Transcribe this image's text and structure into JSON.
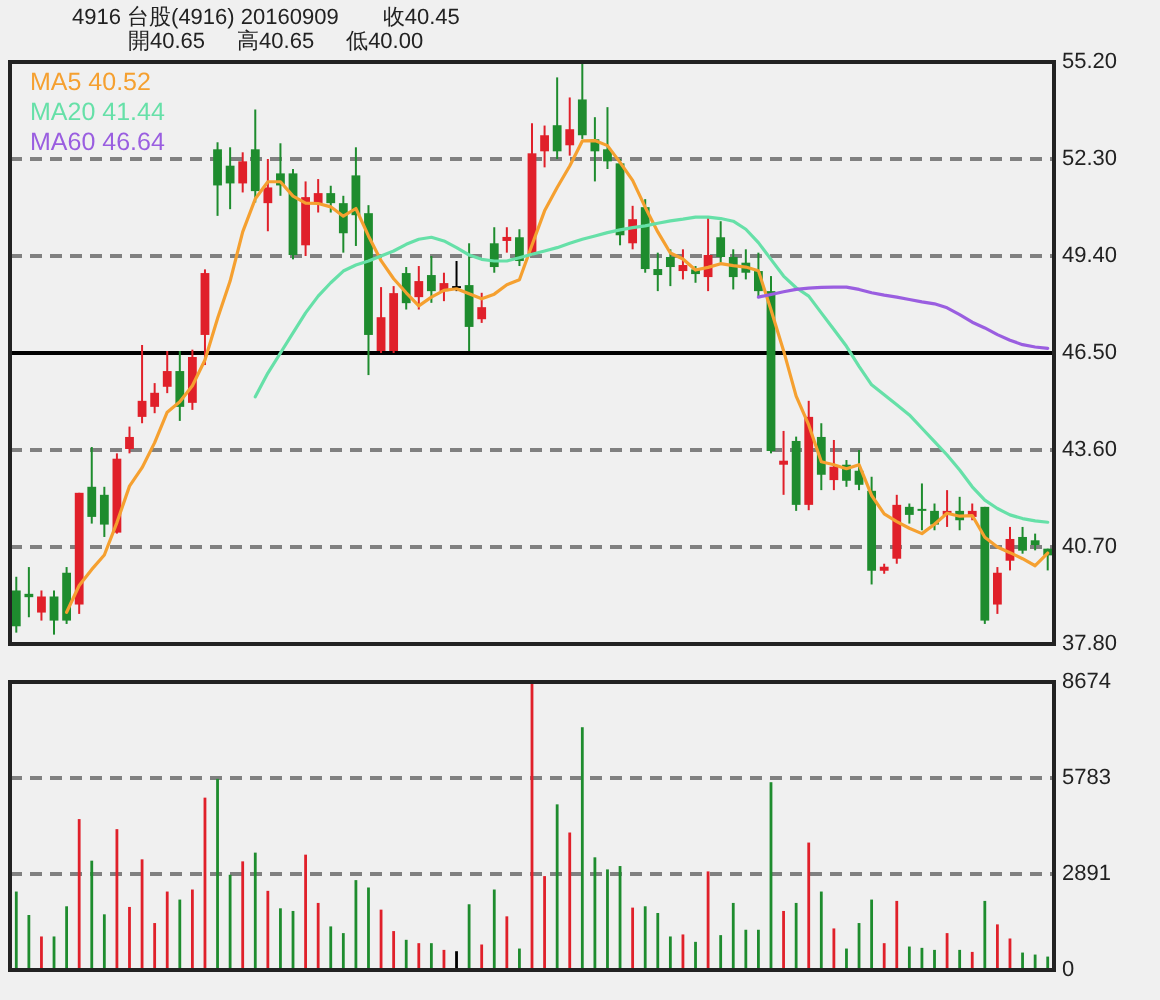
{
  "chart_data": [
    {
      "type": "candlestick",
      "title": "4916  台股(4916)  20160909",
      "annotations": [
        "收40.45",
        "開40.65",
        "高40.65",
        "低40.00"
      ],
      "categories": [
        null,
        null,
        null,
        null,
        null,
        null,
        null,
        null,
        null,
        null,
        null,
        null,
        null,
        null,
        null,
        null,
        null,
        null,
        null,
        null,
        null,
        null,
        null,
        null,
        null,
        null,
        null,
        null,
        null,
        null,
        null,
        null,
        null,
        null,
        null,
        null,
        null,
        null,
        null,
        null,
        null,
        null,
        null,
        null,
        null,
        null,
        null,
        null,
        null,
        null,
        null,
        null,
        null,
        null,
        null,
        null,
        null,
        null,
        null,
        null,
        null,
        null,
        null,
        null,
        null,
        null,
        null,
        null,
        null,
        null,
        null,
        null,
        null,
        null,
        null,
        null,
        null,
        null,
        null,
        null,
        null,
        null,
        null
      ],
      "ohlc": [
        [
          39.4,
          39.81,
          38.14,
          38.33
        ],
        [
          39.3,
          40.1,
          38.6,
          39.2
        ],
        [
          38.74,
          39.4,
          38.5,
          39.22
        ],
        [
          39.22,
          39.4,
          38.08,
          38.5
        ],
        [
          39.93,
          40.1,
          38.4,
          38.5
        ],
        [
          38.98,
          42.32,
          38.7,
          42.32
        ],
        [
          42.5,
          43.69,
          41.4,
          41.6
        ],
        [
          42.26,
          42.5,
          41.0,
          41.37
        ],
        [
          41.13,
          43.5,
          41.1,
          43.34
        ],
        [
          43.63,
          44.3,
          43.5,
          43.99
        ],
        [
          44.59,
          46.74,
          44.4,
          45.07
        ],
        [
          44.89,
          45.6,
          44.7,
          45.31
        ],
        [
          45.49,
          46.56,
          45.3,
          45.96
        ],
        [
          45.96,
          46.56,
          44.47,
          44.89
        ],
        [
          45.01,
          46.6,
          44.8,
          46.38
        ],
        [
          47.04,
          49.0,
          46.14,
          48.89
        ],
        [
          52.59,
          52.8,
          50.6,
          51.51
        ],
        [
          52.1,
          52.65,
          50.8,
          51.57
        ],
        [
          51.57,
          52.5,
          51.3,
          52.23
        ],
        [
          52.59,
          53.78,
          51.0,
          51.34
        ],
        [
          50.98,
          52.3,
          50.14,
          51.45
        ],
        [
          51.87,
          52.77,
          51.2,
          51.51
        ],
        [
          51.87,
          52.0,
          49.3,
          49.43
        ],
        [
          49.72,
          51.63,
          49.4,
          51.16
        ],
        [
          50.98,
          51.7,
          50.7,
          51.28
        ],
        [
          51.28,
          51.5,
          50.7,
          50.98
        ],
        [
          50.98,
          51.2,
          49.5,
          50.08
        ],
        [
          51.81,
          52.65,
          49.7,
          50.62
        ],
        [
          50.68,
          50.92,
          45.84,
          47.04
        ],
        [
          46.56,
          48.47,
          46.5,
          47.57
        ],
        [
          46.56,
          48.5,
          46.5,
          48.29
        ],
        [
          48.89,
          49.07,
          47.8,
          47.99
        ],
        [
          48.17,
          49.1,
          47.8,
          48.65
        ],
        [
          48.83,
          49.4,
          48.0,
          48.35
        ],
        [
          48.35,
          48.9,
          48.05,
          48.59
        ],
        [
          48.5,
          49.25,
          48.35,
          48.5
        ],
        [
          48.53,
          49.78,
          46.56,
          47.28
        ],
        [
          47.51,
          48.3,
          47.4,
          47.87
        ],
        [
          49.78,
          50.26,
          48.9,
          49.07
        ],
        [
          49.85,
          50.26,
          49.5,
          49.97
        ],
        [
          49.96,
          50.2,
          49.1,
          49.25
        ],
        [
          49.49,
          53.37,
          49.4,
          52.47
        ],
        [
          52.53,
          53.3,
          52.05,
          53.01
        ],
        [
          53.31,
          54.74,
          52.3,
          52.53
        ],
        [
          52.71,
          54.14,
          52.4,
          53.19
        ],
        [
          54.08,
          55.2,
          52.9,
          53.01
        ],
        [
          52.89,
          53.55,
          51.63,
          52.53
        ],
        [
          52.59,
          53.85,
          52.0,
          52.23
        ],
        [
          52.17,
          52.3,
          49.72,
          50.02
        ],
        [
          49.78,
          50.9,
          49.6,
          50.5
        ],
        [
          50.86,
          51.1,
          48.9,
          49.01
        ],
        [
          49.01,
          49.5,
          48.35,
          48.83
        ],
        [
          49.37,
          49.6,
          48.5,
          49.07
        ],
        [
          48.95,
          49.6,
          48.7,
          49.13
        ],
        [
          49.0,
          49.1,
          48.6,
          48.86
        ],
        [
          48.77,
          50.56,
          48.35,
          49.43
        ],
        [
          49.96,
          50.44,
          49.2,
          49.37
        ],
        [
          49.37,
          49.6,
          48.4,
          48.77
        ],
        [
          49.2,
          49.6,
          48.7,
          48.9
        ],
        [
          48.95,
          49.5,
          48.2,
          48.35
        ],
        [
          48.35,
          48.8,
          43.5,
          43.57
        ],
        [
          43.16,
          44.17,
          42.26,
          43.28
        ],
        [
          43.87,
          44.0,
          41.78,
          41.96
        ],
        [
          41.96,
          45.07,
          41.8,
          44.59
        ],
        [
          43.99,
          44.4,
          42.4,
          42.86
        ],
        [
          42.7,
          43.9,
          42.4,
          43.1
        ],
        [
          43.16,
          43.3,
          42.5,
          42.68
        ],
        [
          42.98,
          43.6,
          42.4,
          42.56
        ],
        [
          42.38,
          42.8,
          39.58,
          39.99
        ],
        [
          39.99,
          40.2,
          39.9,
          40.11
        ],
        [
          40.35,
          42.26,
          40.2,
          41.96
        ],
        [
          41.9,
          42.0,
          41.4,
          41.66
        ],
        [
          41.84,
          42.6,
          41.2,
          41.78
        ],
        [
          41.78,
          42.0,
          41.2,
          41.37
        ],
        [
          41.66,
          42.4,
          41.3,
          41.78
        ],
        [
          41.78,
          42.2,
          41.2,
          41.5
        ],
        [
          41.6,
          42.0,
          41.5,
          41.78
        ],
        [
          41.9,
          41.9,
          38.4,
          38.5
        ],
        [
          38.98,
          40.1,
          38.7,
          39.93
        ],
        [
          40.29,
          41.3,
          40.0,
          40.94
        ],
        [
          41.0,
          41.3,
          40.5,
          40.59
        ],
        [
          40.9,
          41.1,
          40.6,
          40.76
        ],
        [
          40.65,
          40.65,
          40.0,
          40.45
        ]
      ],
      "colors": [
        "#1e8c2e",
        "#1e8c2e",
        "#e0202a",
        "#1e8c2e",
        "#1e8c2e",
        "#e0202a",
        "#1e8c2e",
        "#1e8c2e",
        "#e0202a",
        "#e0202a",
        "#e0202a",
        "#e0202a",
        "#e0202a",
        "#1e8c2e",
        "#e0202a",
        "#e0202a",
        "#1e8c2e",
        "#1e8c2e",
        "#e0202a",
        "#1e8c2e",
        "#e0202a",
        "#1e8c2e",
        "#1e8c2e",
        "#e0202a",
        "#e0202a",
        "#1e8c2e",
        "#1e8c2e",
        "#1e8c2e",
        "#1e8c2e",
        "#e0202a",
        "#e0202a",
        "#1e8c2e",
        "#e0202a",
        "#1e8c2e",
        "#e0202a",
        "#000000",
        "#1e8c2e",
        "#e0202a",
        "#1e8c2e",
        "#e0202a",
        "#1e8c2e",
        "#e0202a",
        "#e0202a",
        "#1e8c2e",
        "#e0202a",
        "#1e8c2e",
        "#1e8c2e",
        "#1e8c2e",
        "#1e8c2e",
        "#e0202a",
        "#1e8c2e",
        "#1e8c2e",
        "#1e8c2e",
        "#e0202a",
        "#1e8c2e",
        "#e0202a",
        "#1e8c2e",
        "#1e8c2e",
        "#1e8c2e",
        "#1e8c2e",
        "#1e8c2e",
        "#e0202a",
        "#1e8c2e",
        "#e0202a",
        "#1e8c2e",
        "#e0202a",
        "#1e8c2e",
        "#1e8c2e",
        "#1e8c2e",
        "#e0202a",
        "#e0202a",
        "#1e8c2e",
        "#1e8c2e",
        "#1e8c2e",
        "#e0202a",
        "#1e8c2e",
        "#e0202a",
        "#1e8c2e",
        "#e0202a",
        "#e0202a",
        "#1e8c2e",
        "#1e8c2e",
        "#1e8c2e"
      ],
      "series": [
        {
          "name": "MA5 40.52",
          "type": "line",
          "color": "#f5a030",
          "values": [
            null,
            null,
            null,
            null,
            38.75,
            39.55,
            40.03,
            40.46,
            41.43,
            42.52,
            43.07,
            43.82,
            44.73,
            45.04,
            45.52,
            46.29,
            47.53,
            48.65,
            50.12,
            51.11,
            51.62,
            51.62,
            51.19,
            50.98,
            50.97,
            50.87,
            50.59,
            50.82,
            50.0,
            49.26,
            48.72,
            48.3,
            47.91,
            48.17,
            48.37,
            48.42,
            48.27,
            48.12,
            48.26,
            48.54,
            48.69,
            49.73,
            50.75,
            51.45,
            52.09,
            52.84,
            52.85,
            52.7,
            52.2,
            51.66,
            50.86,
            50.12,
            49.49,
            49.31,
            48.98,
            49.06,
            49.17,
            49.11,
            49.07,
            48.96,
            47.79,
            46.57,
            45.21,
            44.35,
            43.25,
            43.16,
            43.04,
            43.16,
            42.24,
            41.69,
            41.46,
            41.26,
            41.1,
            41.38,
            41.71,
            41.62,
            41.64,
            40.99,
            40.7,
            40.53,
            40.35,
            40.14,
            40.52
          ]
        },
        {
          "name": "MA20 41.44",
          "type": "line",
          "color": "#66e0a8",
          "values": [
            null,
            null,
            null,
            null,
            null,
            null,
            null,
            null,
            null,
            null,
            null,
            null,
            null,
            null,
            null,
            null,
            null,
            null,
            null,
            45.19,
            45.9,
            46.5,
            47.1,
            47.7,
            48.2,
            48.6,
            48.95,
            49.13,
            49.25,
            49.4,
            49.55,
            49.75,
            49.9,
            49.96,
            49.85,
            49.65,
            49.43,
            49.3,
            49.25,
            49.25,
            49.35,
            49.45,
            49.55,
            49.65,
            49.78,
            49.9,
            50.0,
            50.1,
            50.18,
            50.25,
            50.3,
            50.38,
            50.45,
            50.5,
            50.56,
            50.56,
            50.52,
            50.44,
            50.2,
            49.8,
            49.3,
            48.8,
            48.45,
            48.2,
            47.7,
            47.2,
            46.7,
            46.1,
            45.55,
            45.25,
            44.95,
            44.65,
            44.25,
            43.85,
            43.45,
            43.0,
            42.5,
            42.1,
            41.85,
            41.66,
            41.55,
            41.48,
            41.44
          ]
        },
        {
          "name": "MA60 46.64",
          "type": "line",
          "color": "#9a5ee0",
          "values": [
            null,
            null,
            null,
            null,
            null,
            null,
            null,
            null,
            null,
            null,
            null,
            null,
            null,
            null,
            null,
            null,
            null,
            null,
            null,
            null,
            null,
            null,
            null,
            null,
            null,
            null,
            null,
            null,
            null,
            null,
            null,
            null,
            null,
            null,
            null,
            null,
            null,
            null,
            null,
            null,
            null,
            null,
            null,
            null,
            null,
            null,
            null,
            null,
            null,
            null,
            null,
            null,
            null,
            null,
            null,
            null,
            null,
            null,
            null,
            48.17,
            48.25,
            48.33,
            48.4,
            48.44,
            48.46,
            48.47,
            48.47,
            48.4,
            48.3,
            48.23,
            48.17,
            48.1,
            48.03,
            47.97,
            47.85,
            47.65,
            47.42,
            47.25,
            47.05,
            46.88,
            46.75,
            46.68,
            46.64
          ]
        }
      ],
      "ylim": [
        37.8,
        55.2
      ],
      "yticks": [
        {
          "value": 37.8,
          "label": "37.80"
        },
        {
          "value": 40.7,
          "label": "40.70"
        },
        {
          "value": 43.6,
          "label": "43.60"
        },
        {
          "value": 46.5,
          "label": "46.50"
        },
        {
          "value": 49.4,
          "label": "49.40"
        },
        {
          "value": 52.3,
          "label": "52.30"
        },
        {
          "value": 55.2,
          "label": "55.20"
        }
      ],
      "grid": "y",
      "legend": "top left",
      "tick_labels": "y",
      "ref_lines": [
        {
          "axis": "y",
          "value": 46.5,
          "color": "#000000",
          "line_style": "solid"
        }
      ]
    },
    {
      "type": "bar",
      "categories": [
        null,
        null,
        null,
        null,
        null,
        null,
        null,
        null,
        null,
        null,
        null,
        null,
        null,
        null,
        null,
        null,
        null,
        null,
        null,
        null,
        null,
        null,
        null,
        null,
        null,
        null,
        null,
        null,
        null,
        null,
        null,
        null,
        null,
        null,
        null,
        null,
        null,
        null,
        null,
        null,
        null,
        null,
        null,
        null,
        null,
        null,
        null,
        null,
        null,
        null,
        null,
        null,
        null,
        null,
        null,
        null,
        null,
        null,
        null,
        null,
        null,
        null,
        null,
        null,
        null,
        null,
        null,
        null,
        null,
        null,
        null,
        null,
        null,
        null,
        null,
        null,
        null,
        null,
        null,
        null,
        null,
        null,
        null
      ],
      "values": [
        2363,
        1656,
        1010,
        1010,
        1919,
        4545,
        3293,
        1677,
        4242,
        1899,
        3333,
        1414,
        2363,
        2121,
        2424,
        5191,
        5757,
        2868,
        3272,
        3535,
        2384,
        1858,
        1778,
        3474,
        2020,
        1313,
        1111,
        2707,
        2485,
        1818,
        1172,
        909,
        808,
        808,
        606,
        566,
        1980,
        768,
        2424,
        1616,
        646,
        8674,
        2828,
        4989,
        4141,
        7312,
        3394,
        3030,
        3131,
        1879,
        1919,
        1717,
        1010,
        1071,
        848,
        2969,
        1050,
        2020,
        1212,
        1212,
        5656,
        1778,
        2020,
        3838,
        2363,
        1252,
        646,
        1414,
        2121,
        808,
        2081,
        707,
        667,
        606,
        1111,
        606,
        545,
        2081,
        1374,
        949,
        525,
        465,
        404
      ],
      "colors": [
        "#1e8c2e",
        "#1e8c2e",
        "#e0202a",
        "#1e8c2e",
        "#1e8c2e",
        "#e0202a",
        "#1e8c2e",
        "#1e8c2e",
        "#e0202a",
        "#e0202a",
        "#e0202a",
        "#e0202a",
        "#e0202a",
        "#1e8c2e",
        "#e0202a",
        "#e0202a",
        "#1e8c2e",
        "#1e8c2e",
        "#e0202a",
        "#1e8c2e",
        "#e0202a",
        "#1e8c2e",
        "#1e8c2e",
        "#e0202a",
        "#e0202a",
        "#1e8c2e",
        "#1e8c2e",
        "#1e8c2e",
        "#1e8c2e",
        "#e0202a",
        "#e0202a",
        "#1e8c2e",
        "#e0202a",
        "#1e8c2e",
        "#e0202a",
        "#000000",
        "#1e8c2e",
        "#e0202a",
        "#1e8c2e",
        "#e0202a",
        "#1e8c2e",
        "#e0202a",
        "#e0202a",
        "#1e8c2e",
        "#e0202a",
        "#1e8c2e",
        "#1e8c2e",
        "#1e8c2e",
        "#1e8c2e",
        "#e0202a",
        "#1e8c2e",
        "#1e8c2e",
        "#1e8c2e",
        "#e0202a",
        "#1e8c2e",
        "#e0202a",
        "#1e8c2e",
        "#1e8c2e",
        "#1e8c2e",
        "#1e8c2e",
        "#1e8c2e",
        "#e0202a",
        "#1e8c2e",
        "#e0202a",
        "#1e8c2e",
        "#e0202a",
        "#1e8c2e",
        "#1e8c2e",
        "#1e8c2e",
        "#e0202a",
        "#e0202a",
        "#1e8c2e",
        "#1e8c2e",
        "#1e8c2e",
        "#e0202a",
        "#1e8c2e",
        "#e0202a",
        "#1e8c2e",
        "#e0202a",
        "#e0202a",
        "#1e8c2e",
        "#1e8c2e",
        "#1e8c2e"
      ],
      "ylim": [
        0,
        8674
      ],
      "yticks": [
        0,
        2891,
        5783,
        8674
      ],
      "grid": "y",
      "tick_labels": "y"
    }
  ]
}
